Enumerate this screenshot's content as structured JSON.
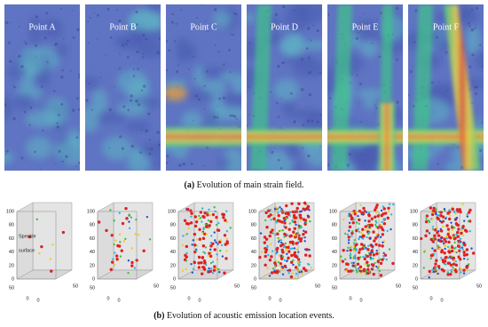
{
  "figure": {
    "panels_a": [
      "Point A",
      "Point B",
      "Point C",
      "Point D",
      "Point E",
      "Point F"
    ],
    "caption_a": {
      "label": "(a)",
      "text": "Evolution of main strain field."
    },
    "panels_b": {
      "z_ticks": [
        "100",
        "80",
        "60",
        "40",
        "20",
        "0"
      ],
      "base_ticks": [
        "50",
        "0",
        "0",
        "50"
      ],
      "annotation": [
        "Speckle",
        "surface"
      ]
    },
    "caption_b": {
      "label": "(b)",
      "text": "Evolution of acoustic emission location events."
    }
  }
}
